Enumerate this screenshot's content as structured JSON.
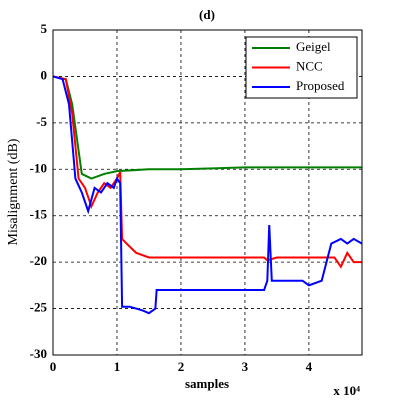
{
  "chart_data": {
    "type": "line",
    "title": "(d)",
    "xlabel": "samples",
    "ylabel": "Misalignment (dB)",
    "x_multiplier": "x 10⁴",
    "xlim": [
      0,
      4.83
    ],
    "ylim": [
      -30,
      5
    ],
    "xticks": [
      0,
      1,
      2,
      3,
      4
    ],
    "yticks": [
      5,
      0,
      -5,
      -10,
      -15,
      -20,
      -25,
      -30
    ],
    "grid": true,
    "legend": "upper right",
    "series": [
      {
        "name": "Geigel",
        "color": "#008000",
        "x": [
          0,
          0.2,
          0.3,
          0.45,
          0.6,
          0.8,
          1.0,
          1.5,
          2,
          2.5,
          3,
          3.5,
          4,
          4.83
        ],
        "values": [
          0,
          -0.3,
          -3,
          -10.5,
          -11,
          -10.5,
          -10.2,
          -10,
          -10,
          -9.9,
          -9.8,
          -9.8,
          -9.8,
          -9.8
        ]
      },
      {
        "name": "NCC",
        "color": "#ff0000",
        "x": [
          0,
          0.2,
          0.3,
          0.4,
          0.5,
          0.6,
          0.7,
          0.8,
          0.9,
          1.0,
          1.05,
          1.08,
          1.15,
          1.3,
          1.5,
          2,
          3,
          3.3,
          3.35,
          3.5,
          4,
          4.4,
          4.5,
          4.6,
          4.7,
          4.83
        ],
        "values": [
          0,
          -0.3,
          -4,
          -11,
          -12,
          -14,
          -12.5,
          -11.5,
          -12,
          -11,
          -10.3,
          -17.5,
          -18,
          -19,
          -19.5,
          -19.5,
          -19.5,
          -19.5,
          -19.8,
          -19.5,
          -19.5,
          -19.5,
          -20.5,
          -19,
          -20,
          -20
        ]
      },
      {
        "name": "Proposed",
        "color": "#0000ff",
        "x": [
          0,
          0.15,
          0.25,
          0.35,
          0.45,
          0.55,
          0.65,
          0.75,
          0.85,
          0.95,
          1.0,
          1.05,
          1.08,
          1.2,
          1.4,
          1.5,
          1.6,
          1.62,
          2,
          2.5,
          3.3,
          3.35,
          3.38,
          3.42,
          3.6,
          3.9,
          4.0,
          4.2,
          4.35,
          4.5,
          4.6,
          4.7,
          4.83
        ],
        "values": [
          0,
          -0.3,
          -3,
          -11,
          -12.5,
          -14.5,
          -12,
          -12.5,
          -11.5,
          -12,
          -11,
          -11.5,
          -24.8,
          -24.8,
          -25.2,
          -25.5,
          -25,
          -23,
          -23,
          -23,
          -23,
          -22,
          -16,
          -22,
          -22,
          -22,
          -22.5,
          -22,
          -18,
          -17.5,
          -18,
          -17.5,
          -18
        ]
      }
    ]
  }
}
